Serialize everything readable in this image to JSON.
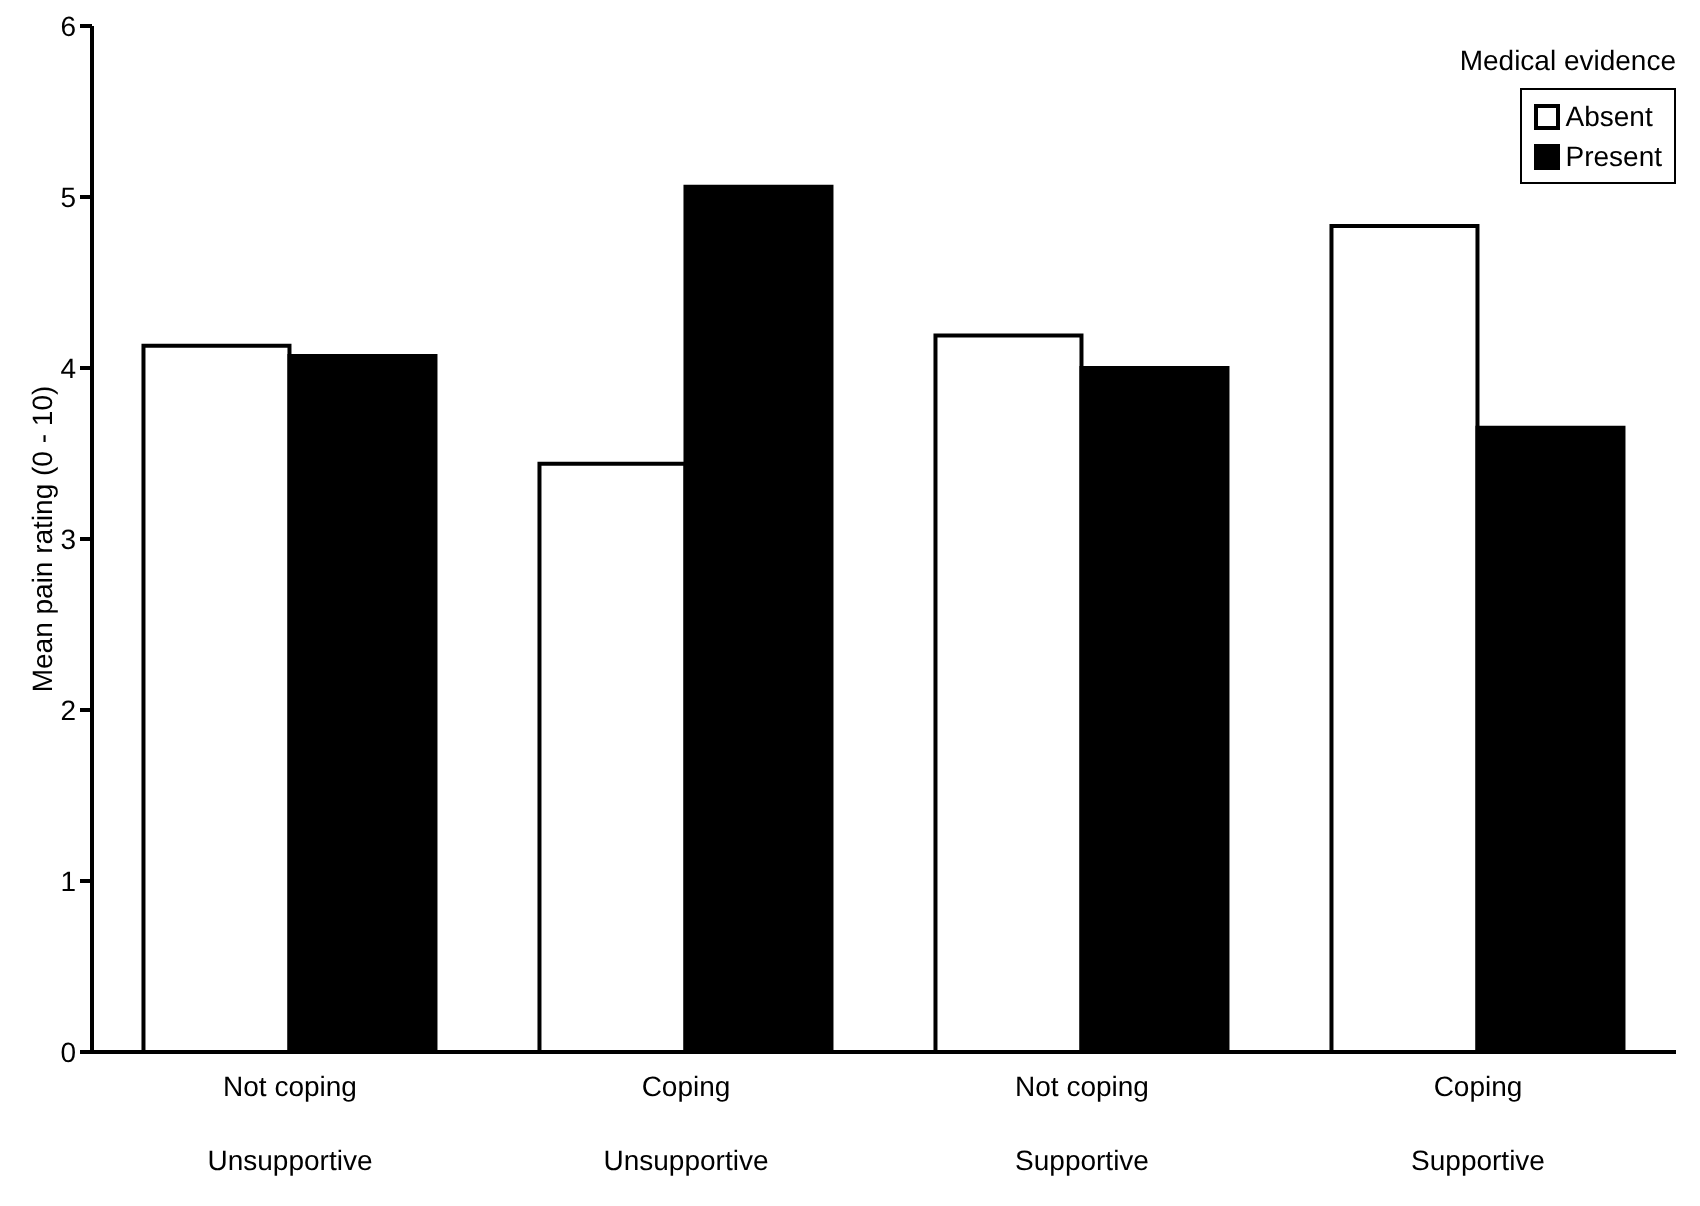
{
  "chart_data": {
    "type": "bar",
    "ylabel": "Mean pain rating (0 - 10)",
    "legend_title": "Medical evidence",
    "categories": [
      "Not coping\nUnsupportive",
      "Coping\nUnsupportive",
      "Not coping\nSupportive",
      "Coping\nSupportive"
    ],
    "series": [
      {
        "name": "Absent",
        "color": "#ffffff",
        "values": [
          4.13,
          3.44,
          4.19,
          4.83
        ]
      },
      {
        "name": "Present",
        "color": "#000000",
        "values": [
          4.07,
          5.06,
          4.0,
          3.65
        ]
      }
    ],
    "ylim": [
      0,
      6
    ],
    "yticks": [
      0,
      1,
      2,
      3,
      4,
      5,
      6
    ],
    "grid": false,
    "legend": "top right"
  }
}
